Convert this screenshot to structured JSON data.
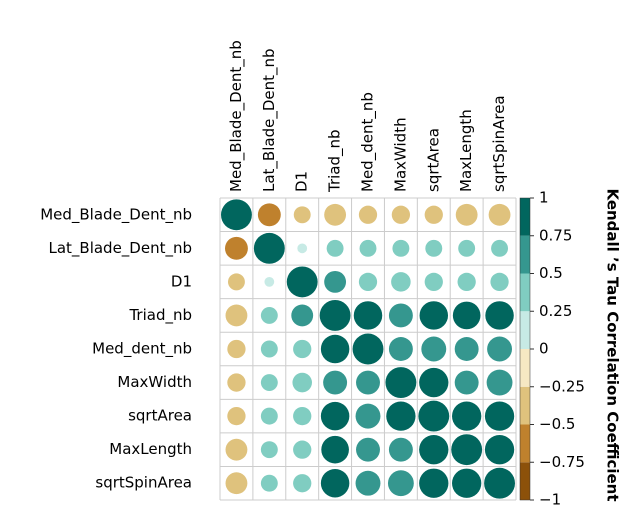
{
  "chart_data": {
    "type": "corrplot",
    "categories": [
      "Med_Blade_Dent_nb",
      "Lat_Blade_Dent_nb",
      "D1",
      "Triad_nb",
      "Med_dent_nb",
      "MaxWidth",
      "sqrtArea",
      "MaxLength",
      "sqrtSpinArea"
    ],
    "matrix": [
      [
        1,
        -0.55,
        -0.3,
        -0.5,
        -0.35,
        -0.35,
        -0.35,
        -0.5,
        -0.5
      ],
      [
        -0.55,
        1,
        0.1,
        0.3,
        0.3,
        0.3,
        0.3,
        0.3,
        0.3
      ],
      [
        -0.3,
        0.1,
        1,
        0.5,
        0.35,
        0.4,
        0.35,
        0.35,
        0.35
      ],
      [
        -0.5,
        0.3,
        0.5,
        1,
        0.85,
        0.6,
        0.85,
        0.8,
        0.85
      ],
      [
        -0.35,
        0.3,
        0.35,
        0.85,
        1,
        0.6,
        0.65,
        0.6,
        0.65
      ],
      [
        -0.35,
        0.3,
        0.4,
        0.6,
        0.6,
        1,
        0.9,
        0.6,
        0.7
      ],
      [
        -0.35,
        0.3,
        0.35,
        0.85,
        0.65,
        0.9,
        1,
        0.9,
        0.9
      ],
      [
        -0.5,
        0.3,
        0.35,
        0.8,
        0.6,
        0.6,
        0.9,
        1,
        0.9
      ],
      [
        -0.5,
        0.3,
        0.35,
        0.85,
        0.65,
        0.7,
        0.9,
        0.9,
        1
      ]
    ],
    "colors": [
      "#8c510a",
      "#bf812d",
      "#dfc27d",
      "#f6e8c3",
      "#c7eae5",
      "#80cdc1",
      "#35978f",
      "#01665e"
    ],
    "clim": [
      -1,
      1
    ],
    "cticks": [
      {
        "value": -1,
        "label": "−1"
      },
      {
        "value": -0.75,
        "label": "−0.75"
      },
      {
        "value": -0.5,
        "label": "−0.5"
      },
      {
        "value": -0.25,
        "label": "−0.25"
      },
      0,
      0.25,
      0.5,
      0.75,
      1
    ],
    "legend_title": "Kendall ’s Tau Correlation Coefficient"
  }
}
